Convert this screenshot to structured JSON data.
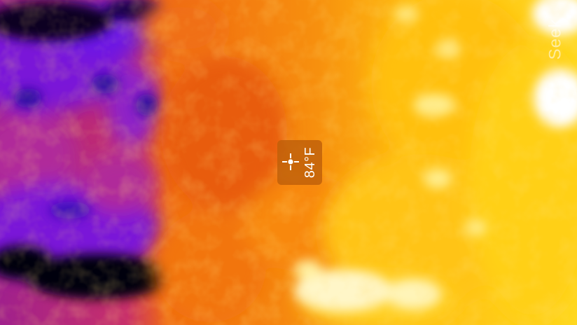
{
  "reading": {
    "temperature": "84°F"
  },
  "watermark": {
    "text": "Seek"
  },
  "palette": {
    "cold": "#000000",
    "cool": "#5a12e0",
    "mid": "#c2305a",
    "warm": "#f26a10",
    "hot": "#ffc410",
    "hottest": "#ffffff",
    "readout_box": "#be5f0a"
  },
  "icons": {
    "spot_meter": "crosshair-icon"
  }
}
